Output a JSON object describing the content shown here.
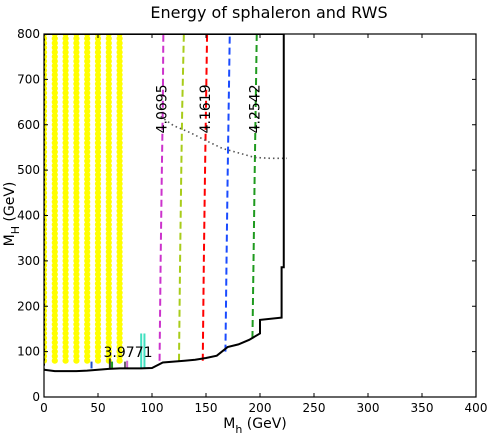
{
  "chart_data": {
    "type": "line",
    "title": "Energy of sphaleron and RWS",
    "xlabel_main": "M",
    "xlabel_sub": "h",
    "xlabel_unit": " (GeV)",
    "ylabel_main": "M",
    "ylabel_sub": "H",
    "ylabel_unit": " (GeV)",
    "xlim": [
      0,
      400
    ],
    "ylim": [
      0,
      800
    ],
    "xticks": [
      0,
      50,
      100,
      150,
      200,
      250,
      300,
      350,
      400
    ],
    "yticks": [
      0,
      100,
      200,
      300,
      400,
      500,
      600,
      700,
      800
    ],
    "grid": false,
    "dot_color": "#ffff00",
    "dot_columns_x": [
      0,
      10,
      20,
      30,
      40,
      50,
      60,
      70
    ],
    "dot_y_range": [
      80,
      800
    ],
    "dot_y_step": 10,
    "boundary": [
      [
        0,
        60
      ],
      [
        10,
        57
      ],
      [
        20,
        57
      ],
      [
        30,
        57
      ],
      [
        40,
        58
      ],
      [
        50,
        60
      ],
      [
        60,
        62
      ],
      [
        70,
        63
      ],
      [
        80,
        63
      ],
      [
        90,
        63
      ],
      [
        100,
        64
      ],
      [
        110,
        76
      ],
      [
        120,
        78
      ],
      [
        130,
        80
      ],
      [
        140,
        82
      ],
      [
        150,
        86
      ],
      [
        160,
        91
      ],
      [
        170,
        110
      ],
      [
        180,
        116
      ],
      [
        190,
        126
      ],
      [
        200,
        140
      ],
      [
        200,
        170
      ],
      [
        220,
        175
      ],
      [
        220,
        286
      ],
      [
        222,
        286
      ],
      [
        222,
        800
      ],
      [
        0,
        800
      ]
    ],
    "contours": [
      {
        "value": "4.0695",
        "color": "#cc33cc",
        "x": [
          107,
          108,
          109,
          110,
          110.5
        ],
        "y": [
          80,
          300,
          480,
          640,
          800
        ]
      },
      {
        "value": "",
        "color": "#a8cc1a",
        "x": [
          125,
          126,
          127,
          128,
          129.5
        ],
        "y": [
          80,
          300,
          480,
          640,
          800
        ]
      },
      {
        "value": "4.1619",
        "color": "#ff0000",
        "x": [
          147,
          148,
          149,
          150,
          151
        ],
        "y": [
          80,
          300,
          480,
          640,
          800
        ]
      },
      {
        "value": "",
        "color": "#1a4bff",
        "x": [
          168,
          169,
          170,
          171,
          172
        ],
        "y": [
          100,
          300,
          480,
          640,
          800
        ]
      },
      {
        "value": "4.2542",
        "color": "#1e9a1e",
        "x": [
          193,
          194,
          195,
          196,
          197
        ],
        "y": [
          130,
          300,
          480,
          640,
          800
        ]
      }
    ],
    "short_segments": [
      {
        "value": "3.9771",
        "color": "#1e50c8",
        "x": [
          44,
          44
        ],
        "y": [
          63,
          78
        ]
      },
      {
        "value": "",
        "color": "#333333",
        "x": [
          61,
          61
        ],
        "y": [
          63,
          85
        ]
      },
      {
        "value": "",
        "color": "#1e9a1e",
        "x": [
          63,
          63
        ],
        "y": [
          63,
          78
        ]
      },
      {
        "value": "",
        "color": "#666666",
        "x": [
          75,
          75
        ],
        "y": [
          63,
          78
        ]
      },
      {
        "value": "",
        "color": "#cc66cc",
        "x": [
          77,
          77
        ],
        "y": [
          63,
          80
        ]
      },
      {
        "value": "",
        "color": "#40e0c0",
        "x": [
          90,
          90
        ],
        "y": [
          63,
          140
        ]
      },
      {
        "value": "",
        "color": "#40e0c0",
        "x": [
          93,
          93
        ],
        "y": [
          63,
          140
        ]
      }
    ],
    "dotted_line": {
      "color": "#555555",
      "x": [
        108,
        120,
        135,
        150,
        165,
        180,
        195,
        210,
        225
      ],
      "y": [
        618,
        598,
        583,
        565,
        548,
        538,
        528,
        526,
        526
      ]
    }
  }
}
